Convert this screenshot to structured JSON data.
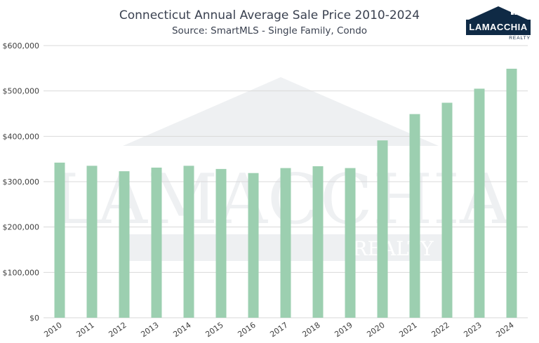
{
  "chart_data": {
    "type": "bar",
    "title": "Connecticut Annual Average Sale Price 2010-2024",
    "subtitle": "Source: SmartMLS - Single Family, Condo",
    "categories": [
      "2010",
      "2011",
      "2012",
      "2013",
      "2014",
      "2015",
      "2016",
      "2017",
      "2018",
      "2019",
      "2020",
      "2021",
      "2022",
      "2023",
      "2024"
    ],
    "values": [
      342000,
      335000,
      323000,
      331000,
      335000,
      328000,
      319000,
      330000,
      334000,
      330000,
      391000,
      449000,
      474000,
      505000,
      549000
    ],
    "y_ticks": [
      "$0",
      "$100,000",
      "$200,000",
      "$300,000",
      "$400,000",
      "$500,000",
      "$600,000"
    ],
    "ylim": [
      0,
      600000
    ],
    "grid": true,
    "legend": "none",
    "bar_color": "#9ccfb0",
    "grid_color": "#d9d9d9"
  },
  "logo": {
    "brand": "LAMACCHIA",
    "sub": "REALTY",
    "color": "#0f2a45"
  },
  "watermark": {
    "brand": "LAMACCHIA",
    "sub": "REALTY"
  }
}
